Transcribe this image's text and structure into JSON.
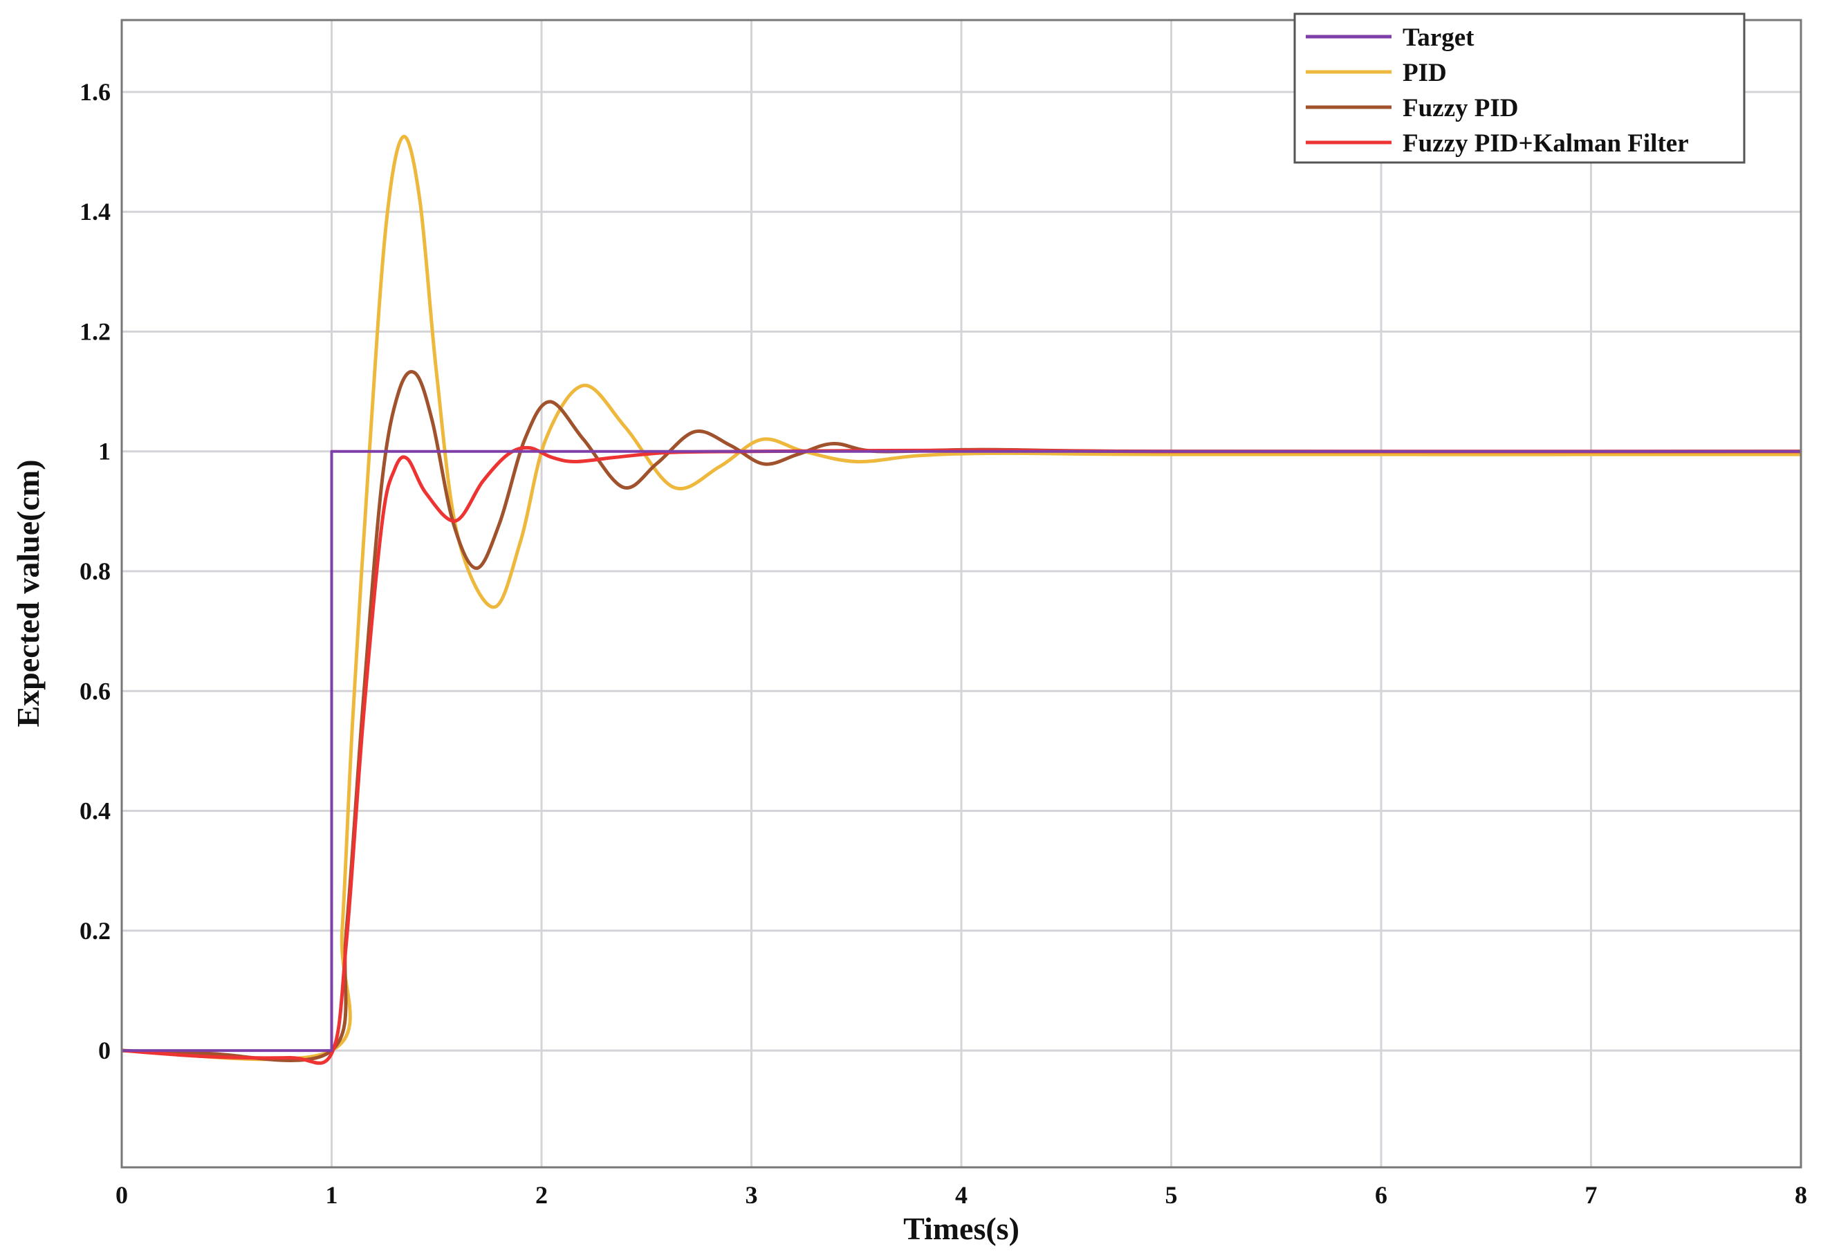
{
  "chart_data": {
    "type": "line",
    "title": "",
    "xlabel": "Times(s)",
    "ylabel": "Expected value(cm)",
    "xlim": [
      0,
      8
    ],
    "ylim": [
      -0.195,
      1.72
    ],
    "xticks": [
      0,
      1,
      2,
      3,
      4,
      5,
      6,
      7,
      8
    ],
    "xtick_labels": [
      "0",
      "1",
      "2",
      "3",
      "4",
      "5",
      "6",
      "7",
      "8"
    ],
    "yticks": [
      0,
      0.2,
      0.4,
      0.6,
      0.8,
      1,
      1.2,
      1.4,
      1.6
    ],
    "ytick_labels": [
      "0",
      "0.2",
      "0.4",
      "0.6",
      "0.8",
      "1",
      "1.2",
      "1.4",
      "1.6"
    ],
    "grid": true,
    "legend_position": "top-right",
    "series": [
      {
        "name": "Target",
        "color": "#7E3FA8",
        "step": true,
        "points": [
          [
            0,
            0
          ],
          [
            1,
            0
          ],
          [
            1,
            1
          ],
          [
            8,
            1
          ]
        ]
      },
      {
        "name": "PID",
        "color": "#EDB83C",
        "points": [
          [
            0,
            0
          ],
          [
            1,
            0
          ],
          [
            1.05,
            0.2
          ],
          [
            1.1,
            0.55
          ],
          [
            1.18,
            1.0
          ],
          [
            1.26,
            1.38
          ],
          [
            1.34,
            1.525
          ],
          [
            1.42,
            1.42
          ],
          [
            1.5,
            1.13
          ],
          [
            1.6,
            0.86
          ],
          [
            1.77,
            0.74
          ],
          [
            1.9,
            0.85
          ],
          [
            2.02,
            1.02
          ],
          [
            2.2,
            1.11
          ],
          [
            2.4,
            1.04
          ],
          [
            2.63,
            0.94
          ],
          [
            2.85,
            0.975
          ],
          [
            3.05,
            1.02
          ],
          [
            3.25,
            1.0
          ],
          [
            3.5,
            0.983
          ],
          [
            3.8,
            0.993
          ],
          [
            4.2,
            0.997
          ],
          [
            5,
            0.995
          ],
          [
            8,
            0.995
          ]
        ]
      },
      {
        "name": "Fuzzy PID",
        "color": "#A0522D",
        "points": [
          [
            0,
            0
          ],
          [
            0.4,
            -0.005
          ],
          [
            1,
            0
          ],
          [
            1.07,
            0.2
          ],
          [
            1.15,
            0.58
          ],
          [
            1.24,
            0.95
          ],
          [
            1.32,
            1.1
          ],
          [
            1.4,
            1.13
          ],
          [
            1.48,
            1.05
          ],
          [
            1.58,
            0.88
          ],
          [
            1.69,
            0.805
          ],
          [
            1.8,
            0.88
          ],
          [
            1.92,
            1.02
          ],
          [
            2.04,
            1.083
          ],
          [
            2.2,
            1.02
          ],
          [
            2.39,
            0.94
          ],
          [
            2.55,
            0.98
          ],
          [
            2.73,
            1.033
          ],
          [
            2.9,
            1.01
          ],
          [
            3.06,
            0.979
          ],
          [
            3.22,
            0.995
          ],
          [
            3.39,
            1.013
          ],
          [
            3.6,
            1.0
          ],
          [
            4.1,
            1.003
          ],
          [
            5,
            1.0
          ],
          [
            8,
            1.0
          ]
        ]
      },
      {
        "name": "Fuzzy PID+Kalman Filter",
        "color": "#EE3333",
        "points": [
          [
            0,
            0
          ],
          [
            0.4,
            -0.01
          ],
          [
            0.8,
            -0.012
          ],
          [
            1,
            -0.005
          ],
          [
            1.07,
            0.18
          ],
          [
            1.15,
            0.55
          ],
          [
            1.24,
            0.88
          ],
          [
            1.3,
            0.97
          ],
          [
            1.36,
            0.988
          ],
          [
            1.45,
            0.93
          ],
          [
            1.59,
            0.884
          ],
          [
            1.72,
            0.95
          ],
          [
            1.84,
            0.995
          ],
          [
            1.94,
            1.006
          ],
          [
            2.05,
            0.99
          ],
          [
            2.16,
            0.983
          ],
          [
            2.35,
            0.99
          ],
          [
            2.6,
            0.998
          ],
          [
            3,
            1.0
          ],
          [
            4.1,
            1.002
          ],
          [
            5,
            1.0
          ],
          [
            8,
            1.0
          ]
        ]
      }
    ]
  }
}
